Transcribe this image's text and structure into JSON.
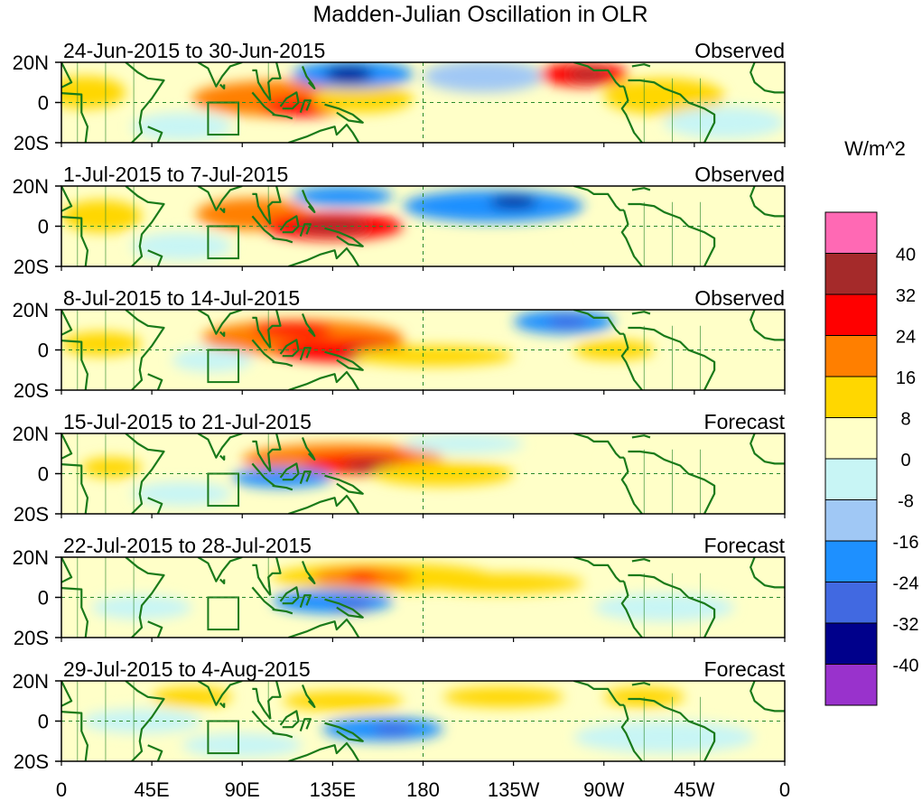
{
  "chart_data": {
    "type": "heatmap",
    "title": "Madden-Julian Oscillation in OLR",
    "units_label": "W/m^2",
    "x_ticks": [
      "0",
      "45E",
      "90E",
      "135E",
      "180",
      "135W",
      "90W",
      "45W",
      "0"
    ],
    "x_tick_lon": [
      0,
      45,
      90,
      135,
      180,
      225,
      270,
      315,
      360
    ],
    "y_ticks": [
      "20N",
      "0",
      "20S"
    ],
    "y_tick_lat": [
      20,
      0,
      -20
    ],
    "ylim": [
      -20,
      20
    ],
    "xlim": [
      0,
      360
    ],
    "colorbar": {
      "levels": [
        "40",
        "32",
        "24",
        "16",
        "8",
        "0",
        "-8",
        "-16",
        "-24",
        "-32",
        "-40"
      ],
      "colors": [
        "#ff69b4",
        "#a52a2a",
        "#ff0000",
        "#ff7f00",
        "#ffd700",
        "#ffffc8",
        "#c8f5f5",
        "#a0c8f5",
        "#1e90ff",
        "#4169e1",
        "#00008b",
        "#9932cc"
      ]
    },
    "panels": [
      {
        "label": "24-Jun-2015 to 30-Jun-2015",
        "status": "Observed",
        "anomalies": [
          {
            "lon": 110,
            "lat": 2,
            "rlon": 45,
            "rlat": 9,
            "value": 20
          },
          {
            "lon": 120,
            "lat": -2,
            "rlon": 20,
            "rlat": 5,
            "value": 28
          },
          {
            "lon": 150,
            "lat": 2,
            "rlon": 25,
            "rlat": 7,
            "value": 14
          },
          {
            "lon": 12,
            "lat": 5,
            "rlon": 20,
            "rlat": 8,
            "value": 10
          },
          {
            "lon": 145,
            "lat": 14,
            "rlon": 30,
            "rlat": 7,
            "value": -20
          },
          {
            "lon": 143,
            "lat": 14,
            "rlon": 12,
            "rlat": 4,
            "value": -36
          },
          {
            "lon": 210,
            "lat": 13,
            "rlon": 30,
            "rlat": 8,
            "value": -16
          },
          {
            "lon": 260,
            "lat": 14,
            "rlon": 22,
            "rlat": 6,
            "value": 28
          },
          {
            "lon": 262,
            "lat": 14,
            "rlon": 10,
            "rlat": 3,
            "value": 34
          },
          {
            "lon": 300,
            "lat": 3,
            "rlon": 30,
            "rlat": 9,
            "value": 8
          },
          {
            "lon": 330,
            "lat": -10,
            "rlon": 30,
            "rlat": 8,
            "value": -6
          },
          {
            "lon": 60,
            "lat": -12,
            "rlon": 25,
            "rlat": 7,
            "value": -6
          }
        ]
      },
      {
        "label": "1-Jul-2015 to 7-Jul-2015",
        "status": "Observed",
        "anomalies": [
          {
            "lon": 95,
            "lat": 6,
            "rlon": 28,
            "rlat": 8,
            "value": 22
          },
          {
            "lon": 135,
            "lat": 0,
            "rlon": 35,
            "rlat": 7,
            "value": 26
          },
          {
            "lon": 135,
            "lat": 0,
            "rlon": 18,
            "rlat": 4,
            "value": 34
          },
          {
            "lon": 140,
            "lat": 15,
            "rlon": 25,
            "rlat": 5,
            "value": -18
          },
          {
            "lon": 215,
            "lat": 10,
            "rlon": 45,
            "rlat": 8,
            "value": -18
          },
          {
            "lon": 225,
            "lat": 12,
            "rlon": 12,
            "rlat": 3,
            "value": -36
          },
          {
            "lon": 20,
            "lat": 5,
            "rlon": 20,
            "rlat": 8,
            "value": 10
          },
          {
            "lon": 290,
            "lat": -3,
            "rlon": 30,
            "rlat": 7,
            "value": 6
          },
          {
            "lon": 60,
            "lat": -10,
            "rlon": 25,
            "rlat": 7,
            "value": -6
          }
        ]
      },
      {
        "label": "8-Jul-2015 to 14-Jul-2015",
        "status": "Observed",
        "anomalies": [
          {
            "lon": 120,
            "lat": 6,
            "rlon": 50,
            "rlat": 9,
            "value": 20
          },
          {
            "lon": 140,
            "lat": 0,
            "rlon": 35,
            "rlat": 6,
            "value": 26
          },
          {
            "lon": 115,
            "lat": 10,
            "rlon": 20,
            "rlat": 4,
            "value": 30
          },
          {
            "lon": 160,
            "lat": -2,
            "rlon": 20,
            "rlat": 4,
            "value": 34
          },
          {
            "lon": 185,
            "lat": -3,
            "rlon": 40,
            "rlat": 5,
            "value": 10
          },
          {
            "lon": 250,
            "lat": 14,
            "rlon": 25,
            "rlat": 6,
            "value": -20
          },
          {
            "lon": 252,
            "lat": 14,
            "rlon": 10,
            "rlat": 3,
            "value": -28
          },
          {
            "lon": 20,
            "lat": 3,
            "rlon": 20,
            "rlat": 6,
            "value": 10
          },
          {
            "lon": 275,
            "lat": 0,
            "rlon": 20,
            "rlat": 5,
            "value": 10
          },
          {
            "lon": 75,
            "lat": -5,
            "rlon": 20,
            "rlat": 6,
            "value": -6
          }
        ]
      },
      {
        "label": "15-Jul-2015 to 21-Jul-2015",
        "status": "Forecast",
        "anomalies": [
          {
            "lon": 140,
            "lat": 7,
            "rlon": 50,
            "rlat": 8,
            "value": 20
          },
          {
            "lon": 150,
            "lat": 5,
            "rlon": 30,
            "rlat": 5,
            "value": 28
          },
          {
            "lon": 155,
            "lat": 4,
            "rlon": 15,
            "rlat": 3,
            "value": 34
          },
          {
            "lon": 190,
            "lat": 0,
            "rlon": 35,
            "rlat": 6,
            "value": 8
          },
          {
            "lon": 110,
            "lat": -2,
            "rlon": 25,
            "rlat": 5,
            "value": -18
          },
          {
            "lon": 25,
            "lat": 3,
            "rlon": 15,
            "rlat": 5,
            "value": 10
          },
          {
            "lon": 200,
            "lat": 15,
            "rlon": 30,
            "rlat": 5,
            "value": -8
          },
          {
            "lon": 300,
            "lat": 5,
            "rlon": 30,
            "rlat": 6,
            "value": 6
          },
          {
            "lon": 60,
            "lat": -10,
            "rlon": 25,
            "rlat": 6,
            "value": -6
          }
        ]
      },
      {
        "label": "22-Jul-2015 to 28-Jul-2015",
        "status": "Forecast",
        "anomalies": [
          {
            "lon": 160,
            "lat": 10,
            "rlon": 55,
            "rlat": 7,
            "value": 14
          },
          {
            "lon": 150,
            "lat": 10,
            "rlon": 25,
            "rlat": 5,
            "value": 20
          },
          {
            "lon": 150,
            "lat": 10,
            "rlon": 8,
            "rlat": 3,
            "value": 28
          },
          {
            "lon": 220,
            "lat": 7,
            "rlon": 40,
            "rlat": 5,
            "value": 10
          },
          {
            "lon": 135,
            "lat": -2,
            "rlon": 30,
            "rlat": 6,
            "value": -20
          },
          {
            "lon": 145,
            "lat": -4,
            "rlon": 10,
            "rlat": 3,
            "value": -28
          },
          {
            "lon": 40,
            "lat": -5,
            "rlon": 25,
            "rlat": 6,
            "value": -6
          },
          {
            "lon": 300,
            "lat": -5,
            "rlon": 35,
            "rlat": 7,
            "value": -6
          },
          {
            "lon": 290,
            "lat": 12,
            "rlon": 20,
            "rlat": 4,
            "value": 6
          }
        ]
      },
      {
        "label": "29-Jul-2015 to 4-Aug-2015",
        "status": "Forecast",
        "anomalies": [
          {
            "lon": 65,
            "lat": 12,
            "rlon": 20,
            "rlat": 5,
            "value": 10
          },
          {
            "lon": 140,
            "lat": 10,
            "rlon": 30,
            "rlat": 5,
            "value": 10
          },
          {
            "lon": 220,
            "lat": 12,
            "rlon": 30,
            "rlat": 5,
            "value": 10
          },
          {
            "lon": 290,
            "lat": 12,
            "rlon": 20,
            "rlat": 5,
            "value": 10
          },
          {
            "lon": 160,
            "lat": -4,
            "rlon": 30,
            "rlat": 6,
            "value": -20
          },
          {
            "lon": 165,
            "lat": -4,
            "rlon": 10,
            "rlat": 3,
            "value": -28
          },
          {
            "lon": 40,
            "lat": 0,
            "rlon": 30,
            "rlat": 6,
            "value": -8
          },
          {
            "lon": 300,
            "lat": -8,
            "rlon": 45,
            "rlat": 8,
            "value": -8
          },
          {
            "lon": 90,
            "lat": -12,
            "rlon": 30,
            "rlat": 6,
            "value": -6
          }
        ]
      }
    ]
  }
}
